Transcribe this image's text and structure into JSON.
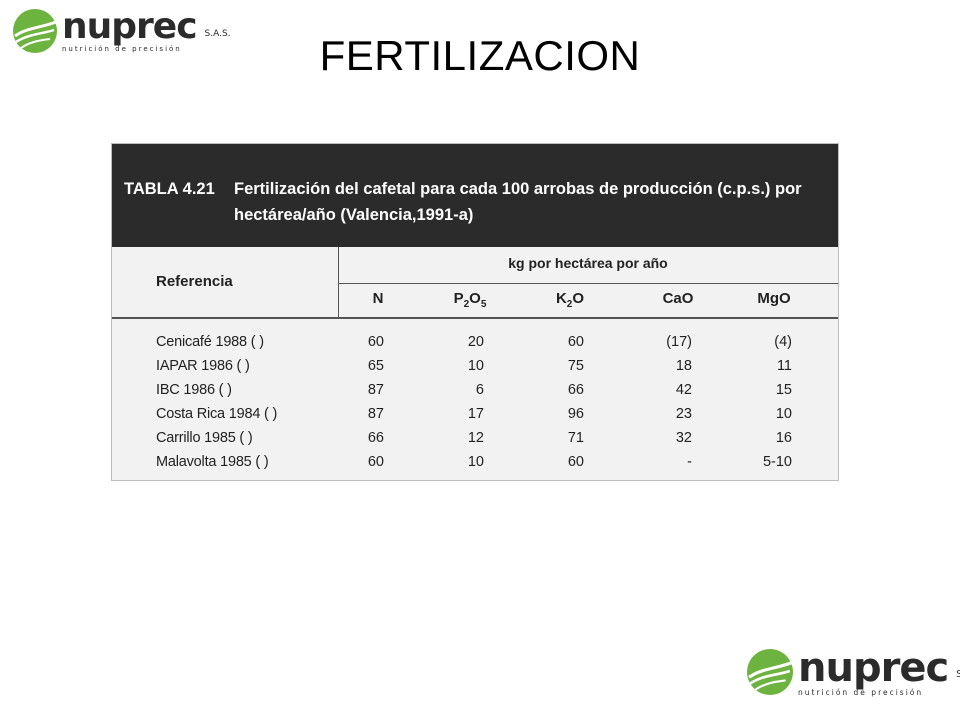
{
  "slide": {
    "title": "FERTILIZACION"
  },
  "logo": {
    "brand": "nuprec",
    "suffix": "S.A.S.",
    "tagline": "nutrición de precisión",
    "color": "#6db33f"
  },
  "table": {
    "caption_number": "TABLA 4.21",
    "caption_text": "Fertilización del cafetal para cada 100 arrobas de producción (c.p.s.) por hectárea/año (Valencia,1991-a)",
    "reference_header": "Referencia",
    "group_header": "kg por hectárea por año",
    "columns": [
      {
        "base": "N",
        "sub1": "",
        "mid": "",
        "sub2": ""
      },
      {
        "base": "P",
        "sub1": "2",
        "mid": "O",
        "sub2": "5"
      },
      {
        "base": "K",
        "sub1": "2",
        "mid": "O",
        "sub2": ""
      },
      {
        "base": "CaO",
        "sub1": "",
        "mid": "",
        "sub2": ""
      },
      {
        "base": "MgO",
        "sub1": "",
        "mid": "",
        "sub2": ""
      }
    ],
    "rows": [
      {
        "reference": "Cenicafé 1988 ( )",
        "N": "60",
        "P2O5": "20",
        "K2O": "60",
        "CaO": "(17)",
        "MgO": "(4)"
      },
      {
        "reference": "IAPAR 1986 ( )",
        "N": "65",
        "P2O5": "10",
        "K2O": "75",
        "CaO": "18",
        "MgO": "11"
      },
      {
        "reference": "IBC 1986 ( )",
        "N": "87",
        "P2O5": "6",
        "K2O": "66",
        "CaO": "42",
        "MgO": "15"
      },
      {
        "reference": "Costa Rica 1984 ( )",
        "N": "87",
        "P2O5": "17",
        "K2O": "96",
        "CaO": "23",
        "MgO": "10"
      },
      {
        "reference": "Carrillo 1985 ( )",
        "N": "66",
        "P2O5": "12",
        "K2O": "71",
        "CaO": "32",
        "MgO": "16"
      },
      {
        "reference": "Malavolta 1985 ( )",
        "N": "60",
        "P2O5": "10",
        "K2O": "60",
        "CaO": "-",
        "MgO": "5-10"
      }
    ]
  }
}
